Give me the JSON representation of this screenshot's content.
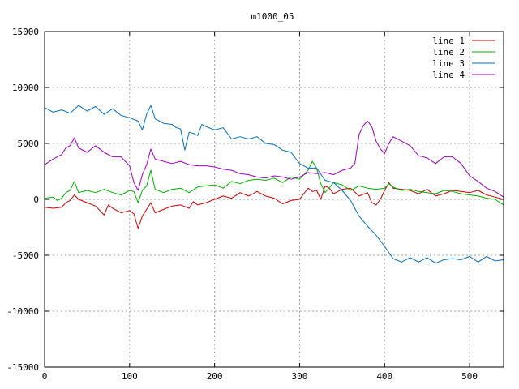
{
  "chart_data": {
    "type": "line",
    "title": "m1000_05",
    "xlabel": "",
    "ylabel": "",
    "xlim": [
      0,
      540
    ],
    "ylim": [
      -15000,
      15000
    ],
    "xticks": [
      0,
      100,
      200,
      300,
      400,
      500
    ],
    "yticks": [
      -15000,
      -10000,
      -5000,
      0,
      5000,
      10000,
      15000
    ],
    "grid": true,
    "legend_position": "top-right",
    "series": [
      {
        "name": "line 1",
        "color": "#d00000",
        "points": [
          [
            0,
            -700
          ],
          [
            10,
            -800
          ],
          [
            20,
            -700
          ],
          [
            25,
            -300
          ],
          [
            30,
            -100
          ],
          [
            35,
            400
          ],
          [
            40,
            0
          ],
          [
            50,
            -300
          ],
          [
            60,
            -600
          ],
          [
            70,
            -1400
          ],
          [
            75,
            -500
          ],
          [
            80,
            -800
          ],
          [
            90,
            -1200
          ],
          [
            100,
            -1000
          ],
          [
            105,
            -1300
          ],
          [
            110,
            -2600
          ],
          [
            115,
            -1500
          ],
          [
            120,
            -900
          ],
          [
            125,
            -300
          ],
          [
            130,
            -1200
          ],
          [
            140,
            -900
          ],
          [
            150,
            -600
          ],
          [
            160,
            -500
          ],
          [
            170,
            -800
          ],
          [
            175,
            -200
          ],
          [
            180,
            -500
          ],
          [
            190,
            -300
          ],
          [
            200,
            0
          ],
          [
            210,
            300
          ],
          [
            220,
            100
          ],
          [
            230,
            600
          ],
          [
            240,
            300
          ],
          [
            250,
            700
          ],
          [
            260,
            300
          ],
          [
            270,
            100
          ],
          [
            280,
            -400
          ],
          [
            290,
            -100
          ],
          [
            300,
            0
          ],
          [
            310,
            1000
          ],
          [
            315,
            700
          ],
          [
            320,
            800
          ],
          [
            325,
            0
          ],
          [
            330,
            1200
          ],
          [
            335,
            1000
          ],
          [
            340,
            500
          ],
          [
            350,
            900
          ],
          [
            360,
            1000
          ],
          [
            370,
            300
          ],
          [
            380,
            600
          ],
          [
            385,
            -300
          ],
          [
            390,
            -500
          ],
          [
            395,
            0
          ],
          [
            400,
            800
          ],
          [
            405,
            1500
          ],
          [
            410,
            1000
          ],
          [
            420,
            900
          ],
          [
            430,
            800
          ],
          [
            440,
            500
          ],
          [
            450,
            900
          ],
          [
            460,
            300
          ],
          [
            470,
            500
          ],
          [
            480,
            800
          ],
          [
            490,
            700
          ],
          [
            500,
            600
          ],
          [
            510,
            800
          ],
          [
            520,
            400
          ],
          [
            530,
            200
          ],
          [
            540,
            0
          ]
        ]
      },
      {
        "name": "line 2",
        "color": "#00b000",
        "points": [
          [
            0,
            100
          ],
          [
            10,
            200
          ],
          [
            15,
            -100
          ],
          [
            20,
            100
          ],
          [
            25,
            600
          ],
          [
            30,
            800
          ],
          [
            35,
            1600
          ],
          [
            40,
            600
          ],
          [
            50,
            800
          ],
          [
            60,
            600
          ],
          [
            70,
            900
          ],
          [
            80,
            600
          ],
          [
            90,
            400
          ],
          [
            100,
            800
          ],
          [
            105,
            700
          ],
          [
            110,
            -300
          ],
          [
            115,
            800
          ],
          [
            120,
            1200
          ],
          [
            125,
            2600
          ],
          [
            130,
            900
          ],
          [
            140,
            600
          ],
          [
            150,
            900
          ],
          [
            160,
            1000
          ],
          [
            170,
            600
          ],
          [
            180,
            1100
          ],
          [
            190,
            1200
          ],
          [
            200,
            1300
          ],
          [
            210,
            1000
          ],
          [
            220,
            1600
          ],
          [
            230,
            1400
          ],
          [
            240,
            1700
          ],
          [
            250,
            1800
          ],
          [
            260,
            1700
          ],
          [
            270,
            1900
          ],
          [
            280,
            1500
          ],
          [
            290,
            2000
          ],
          [
            300,
            1800
          ],
          [
            310,
            2600
          ],
          [
            315,
            3400
          ],
          [
            320,
            2800
          ],
          [
            325,
            1400
          ],
          [
            330,
            600
          ],
          [
            340,
            1500
          ],
          [
            350,
            1300
          ],
          [
            360,
            800
          ],
          [
            370,
            1200
          ],
          [
            380,
            1000
          ],
          [
            390,
            900
          ],
          [
            400,
            1000
          ],
          [
            405,
            1400
          ],
          [
            410,
            1100
          ],
          [
            420,
            800
          ],
          [
            430,
            900
          ],
          [
            440,
            700
          ],
          [
            450,
            600
          ],
          [
            460,
            500
          ],
          [
            470,
            800
          ],
          [
            480,
            700
          ],
          [
            490,
            500
          ],
          [
            500,
            400
          ],
          [
            510,
            300
          ],
          [
            520,
            100
          ],
          [
            530,
            0
          ],
          [
            540,
            -500
          ]
        ]
      },
      {
        "name": "line 3",
        "color": "#0070c0",
        "points": [
          [
            0,
            8200
          ],
          [
            10,
            7800
          ],
          [
            20,
            8000
          ],
          [
            30,
            7700
          ],
          [
            40,
            8400
          ],
          [
            50,
            7900
          ],
          [
            60,
            8300
          ],
          [
            70,
            7600
          ],
          [
            80,
            8100
          ],
          [
            90,
            7500
          ],
          [
            100,
            7300
          ],
          [
            110,
            7000
          ],
          [
            115,
            6200
          ],
          [
            120,
            7600
          ],
          [
            125,
            8400
          ],
          [
            130,
            7200
          ],
          [
            140,
            6800
          ],
          [
            150,
            6700
          ],
          [
            155,
            6400
          ],
          [
            160,
            6300
          ],
          [
            165,
            4400
          ],
          [
            170,
            6000
          ],
          [
            175,
            5900
          ],
          [
            180,
            5700
          ],
          [
            185,
            6700
          ],
          [
            190,
            6500
          ],
          [
            200,
            6200
          ],
          [
            210,
            6400
          ],
          [
            220,
            5400
          ],
          [
            230,
            5600
          ],
          [
            240,
            5400
          ],
          [
            250,
            5600
          ],
          [
            260,
            5000
          ],
          [
            270,
            4900
          ],
          [
            280,
            4400
          ],
          [
            290,
            4200
          ],
          [
            300,
            3200
          ],
          [
            310,
            2800
          ],
          [
            320,
            2800
          ],
          [
            330,
            1700
          ],
          [
            340,
            1500
          ],
          [
            350,
            800
          ],
          [
            360,
            -100
          ],
          [
            370,
            -1500
          ],
          [
            380,
            -2400
          ],
          [
            390,
            -3200
          ],
          [
            400,
            -4200
          ],
          [
            410,
            -5300
          ],
          [
            420,
            -5600
          ],
          [
            430,
            -5200
          ],
          [
            440,
            -5600
          ],
          [
            450,
            -5200
          ],
          [
            460,
            -5700
          ],
          [
            470,
            -5400
          ],
          [
            480,
            -5300
          ],
          [
            490,
            -5400
          ],
          [
            500,
            -5100
          ],
          [
            510,
            -5600
          ],
          [
            520,
            -5100
          ],
          [
            530,
            -5500
          ],
          [
            540,
            -5400
          ]
        ]
      },
      {
        "name": "line 4",
        "color": "#a000c0",
        "points": [
          [
            0,
            3100
          ],
          [
            10,
            3600
          ],
          [
            20,
            4000
          ],
          [
            25,
            4600
          ],
          [
            30,
            4800
          ],
          [
            35,
            5500
          ],
          [
            40,
            4600
          ],
          [
            50,
            4200
          ],
          [
            60,
            4800
          ],
          [
            70,
            4200
          ],
          [
            80,
            3800
          ],
          [
            90,
            3800
          ],
          [
            100,
            3000
          ],
          [
            105,
            1500
          ],
          [
            110,
            800
          ],
          [
            115,
            2200
          ],
          [
            120,
            3100
          ],
          [
            125,
            4500
          ],
          [
            130,
            3600
          ],
          [
            140,
            3400
          ],
          [
            150,
            3200
          ],
          [
            160,
            3400
          ],
          [
            170,
            3100
          ],
          [
            180,
            3000
          ],
          [
            190,
            3000
          ],
          [
            200,
            2900
          ],
          [
            210,
            2700
          ],
          [
            220,
            2600
          ],
          [
            230,
            2300
          ],
          [
            240,
            2200
          ],
          [
            250,
            2000
          ],
          [
            260,
            1900
          ],
          [
            270,
            2100
          ],
          [
            280,
            2000
          ],
          [
            290,
            1800
          ],
          [
            300,
            2000
          ],
          [
            310,
            2400
          ],
          [
            320,
            2300
          ],
          [
            330,
            2400
          ],
          [
            340,
            2200
          ],
          [
            350,
            2600
          ],
          [
            360,
            2800
          ],
          [
            365,
            3200
          ],
          [
            370,
            5800
          ],
          [
            375,
            6600
          ],
          [
            380,
            7000
          ],
          [
            385,
            6500
          ],
          [
            390,
            5200
          ],
          [
            395,
            4500
          ],
          [
            400,
            4100
          ],
          [
            405,
            5000
          ],
          [
            410,
            5600
          ],
          [
            420,
            5200
          ],
          [
            430,
            4800
          ],
          [
            440,
            3900
          ],
          [
            450,
            3700
          ],
          [
            460,
            3200
          ],
          [
            470,
            3800
          ],
          [
            480,
            3800
          ],
          [
            490,
            3200
          ],
          [
            500,
            2100
          ],
          [
            510,
            1600
          ],
          [
            520,
            1000
          ],
          [
            530,
            700
          ],
          [
            540,
            200
          ]
        ]
      }
    ]
  }
}
